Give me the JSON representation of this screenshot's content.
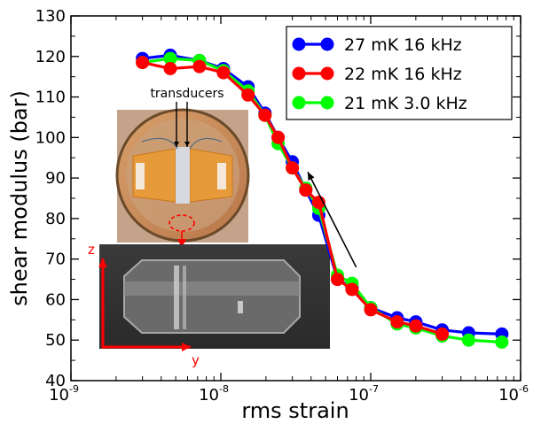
{
  "chart_data": {
    "type": "line",
    "title": "",
    "xlabel": "rms strain",
    "ylabel": "shear modulus (bar)",
    "x_scale": "log",
    "xlim": [
      1e-09,
      1e-06
    ],
    "ylim": [
      40,
      130
    ],
    "x_ticks": [
      {
        "value": 1e-09,
        "base": "10",
        "exp": "-9"
      },
      {
        "value": 1e-08,
        "base": "10",
        "exp": "-8"
      },
      {
        "value": 1e-07,
        "base": "10",
        "exp": "-7"
      },
      {
        "value": 1e-06,
        "base": "10",
        "exp": "-6"
      }
    ],
    "y_ticks": [
      40,
      50,
      60,
      70,
      80,
      90,
      100,
      110,
      120,
      130
    ],
    "legend_position": "top-right",
    "series": [
      {
        "name": "27 mK 16 kHz",
        "color": "#0000ff",
        "points": [
          [
            3e-09,
            119.5
          ],
          [
            4.6e-09,
            120.3
          ],
          [
            7.2e-09,
            119.0
          ],
          [
            1.04e-08,
            117.0
          ],
          [
            1.52e-08,
            112.5
          ],
          [
            1.97e-08,
            106.0
          ],
          [
            2.41e-08,
            100.0
          ],
          [
            3e-08,
            94.0
          ],
          [
            3.69e-08,
            87.0
          ],
          [
            4.5e-08,
            80.8
          ],
          [
            6e-08,
            65.0
          ],
          [
            7.5e-08,
            63.0
          ],
          [
            1e-07,
            58.0
          ],
          [
            1.5e-07,
            55.5
          ],
          [
            2e-07,
            54.5
          ],
          [
            3e-07,
            52.5
          ],
          [
            4.5e-07,
            51.8
          ],
          [
            7.5e-07,
            51.5
          ]
        ]
      },
      {
        "name": "22 mK 16 kHz",
        "color": "#ff0000",
        "points": [
          [
            3e-09,
            118.5
          ],
          [
            4.6e-09,
            117.0
          ],
          [
            7.2e-09,
            117.5
          ],
          [
            1.04e-08,
            116.0
          ],
          [
            1.52e-08,
            110.5
          ],
          [
            1.97e-08,
            105.5
          ],
          [
            2.41e-08,
            100.0
          ],
          [
            3e-08,
            92.5
          ],
          [
            3.69e-08,
            87.0
          ],
          [
            4.5e-08,
            84.0
          ],
          [
            6e-08,
            65.0
          ],
          [
            7.5e-08,
            62.5
          ],
          [
            1e-07,
            57.5
          ],
          [
            1.5e-07,
            54.5
          ],
          [
            2e-07,
            53.5
          ],
          [
            3e-07,
            51.5
          ]
        ]
      },
      {
        "name": "21 mK 3.0 kHz",
        "color": "#00ff00",
        "points": [
          [
            3e-09,
            118.5
          ],
          [
            4.6e-09,
            119.5
          ],
          [
            7.2e-09,
            119.0
          ],
          [
            1.04e-08,
            116.5
          ],
          [
            1.52e-08,
            111.5
          ],
          [
            1.97e-08,
            105.5
          ],
          [
            2.41e-08,
            98.5
          ],
          [
            3e-08,
            92.5
          ],
          [
            3.69e-08,
            87.5
          ],
          [
            4.5e-08,
            82.5
          ],
          [
            6e-08,
            66.0
          ],
          [
            7.5e-08,
            64.0
          ],
          [
            1e-07,
            58.0
          ],
          [
            1.5e-07,
            54.0
          ],
          [
            2e-07,
            53.0
          ],
          [
            3e-07,
            51.0
          ],
          [
            4.5e-07,
            50.0
          ],
          [
            7.5e-07,
            49.5
          ]
        ]
      }
    ],
    "annotations": {
      "arrow": {
        "from": [
          8e-08,
          68.0
        ],
        "to": [
          3.8e-08,
          91.5
        ]
      },
      "inset_label": "transducers",
      "axis_z": "z",
      "axis_y": "y"
    }
  }
}
